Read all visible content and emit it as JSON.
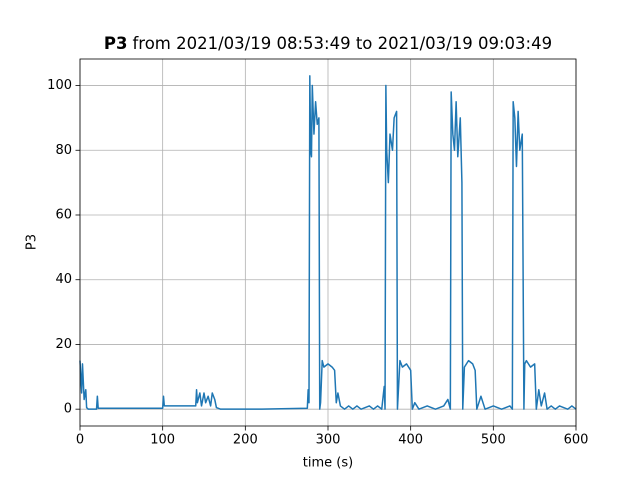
{
  "chart_data": {
    "type": "line",
    "title_prefix": "P3",
    "title": "from 2021/03/19 08:53:49 to 2021/03/19 09:03:49",
    "x_label": "time (s)",
    "y_label": "P3",
    "color": "#1f77b4",
    "grid": true,
    "xlim": [
      0,
      600
    ],
    "xticks": [
      0,
      100,
      200,
      300,
      400,
      500,
      600
    ],
    "ylim": [
      -5.2,
      108.2
    ],
    "yticks": [
      0,
      20,
      40,
      60,
      80,
      100
    ],
    "x": [
      0,
      2,
      3,
      5,
      7,
      8,
      10,
      20,
      21,
      22,
      100,
      101,
      102,
      140,
      141,
      142,
      145,
      147,
      150,
      152,
      155,
      158,
      160,
      163,
      165,
      170,
      220,
      275,
      276,
      277,
      278,
      279,
      280,
      281,
      283,
      285,
      287,
      289,
      290,
      291,
      293,
      295,
      300,
      305,
      308,
      310,
      312,
      315,
      320,
      325,
      330,
      335,
      340,
      350,
      355,
      360,
      365,
      368,
      369,
      370,
      371,
      373,
      375,
      378,
      380,
      383,
      384,
      385,
      387,
      390,
      395,
      400,
      402,
      405,
      410,
      420,
      430,
      440,
      445,
      448,
      449,
      451,
      453,
      455,
      457,
      460,
      462,
      463,
      465,
      470,
      475,
      478,
      480,
      485,
      490,
      500,
      510,
      520,
      523,
      524,
      526,
      528,
      530,
      532,
      535,
      537,
      538,
      540,
      545,
      550,
      552,
      555,
      558,
      562,
      565,
      570,
      575,
      580,
      590,
      595,
      600
    ],
    "values": [
      15,
      5,
      14,
      3,
      6,
      0.5,
      0,
      0,
      4,
      0.3,
      0.3,
      4,
      1,
      1,
      6,
      2,
      5,
      1,
      5,
      2,
      4,
      1,
      5,
      3,
      0.5,
      0,
      0,
      0.3,
      6,
      2,
      103,
      80,
      78,
      100,
      85,
      95,
      88,
      90,
      0,
      2,
      15,
      13,
      14,
      13,
      12,
      2,
      5,
      1,
      0,
      1,
      0,
      1,
      0,
      1,
      0,
      1,
      0,
      7,
      0,
      100,
      80,
      70,
      85,
      80,
      90,
      92,
      0,
      5,
      15,
      13,
      14,
      12,
      0,
      2,
      0,
      1,
      0,
      1,
      3,
      0,
      98,
      85,
      80,
      95,
      78,
      90,
      70,
      0,
      13,
      15,
      14,
      12,
      0,
      4,
      0,
      1,
      0,
      1,
      0,
      95,
      90,
      75,
      92,
      80,
      85,
      0,
      14,
      15,
      13,
      14,
      0,
      6,
      1,
      5,
      0,
      1,
      0,
      1,
      0,
      1,
      0
    ]
  }
}
